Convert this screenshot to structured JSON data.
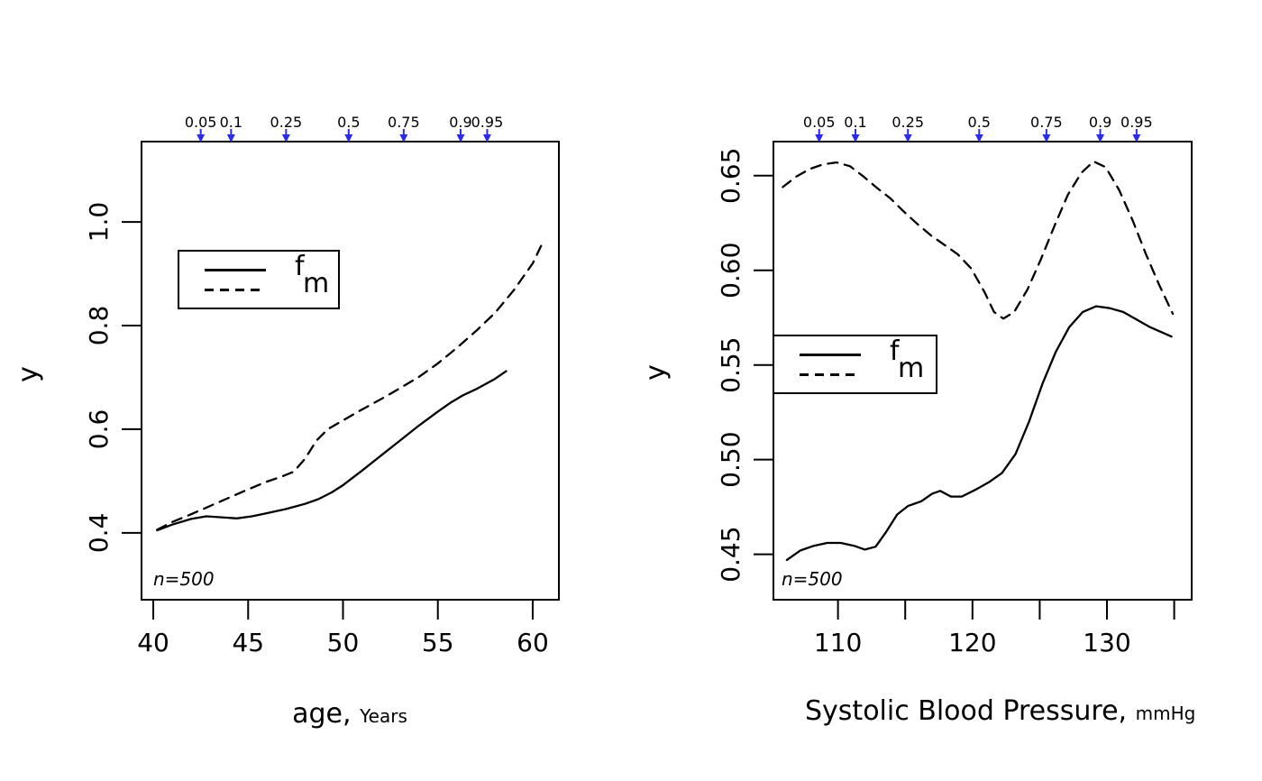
{
  "figure": {
    "background": "#ffffff",
    "text_color": "#000000",
    "line_color": "#000000",
    "quantile_arrow_color": "#2b2bee"
  },
  "chart_data": [
    {
      "id": "age-plot",
      "type": "line",
      "title": "",
      "xlabel_main": "age,",
      "xlabel_unit": "Years",
      "ylabel": "y",
      "sample_size_label": "n=500",
      "grid": false,
      "legend_position": "top-left",
      "xlim": [
        39.38,
        61.38
      ],
      "ylim": [
        0.271,
        1.155
      ],
      "xticks": [
        {
          "v": 40,
          "label": "40"
        },
        {
          "v": 45,
          "label": "45"
        },
        {
          "v": 50,
          "label": "50"
        },
        {
          "v": 55,
          "label": "55"
        },
        {
          "v": 60,
          "label": "60"
        }
      ],
      "yticks": [
        {
          "v": 0.4,
          "label": "0.4"
        },
        {
          "v": 0.6,
          "label": "0.6"
        },
        {
          "v": 0.8,
          "label": "0.8"
        },
        {
          "v": 1.0,
          "label": "1.0"
        }
      ],
      "quantile_markers": {
        "labels": [
          "0.05",
          "0.1",
          "0.25",
          "0.5",
          "0.75",
          "0.9",
          "0.95"
        ],
        "x": [
          42.5,
          44.1,
          47.0,
          50.3,
          53.2,
          56.2,
          57.6
        ]
      },
      "series": [
        {
          "name": "f",
          "line": "solid",
          "points": [
            [
              40.2,
              0.405
            ],
            [
              41.0,
              0.416
            ],
            [
              42.0,
              0.427
            ],
            [
              42.8,
              0.432
            ],
            [
              43.6,
              0.43
            ],
            [
              44.4,
              0.428
            ],
            [
              45.2,
              0.432
            ],
            [
              46.0,
              0.438
            ],
            [
              47.0,
              0.446
            ],
            [
              48.0,
              0.456
            ],
            [
              48.7,
              0.465
            ],
            [
              49.4,
              0.478
            ],
            [
              50.0,
              0.492
            ],
            [
              51.0,
              0.52
            ],
            [
              52.0,
              0.549
            ],
            [
              53.0,
              0.578
            ],
            [
              54.0,
              0.607
            ],
            [
              55.0,
              0.634
            ],
            [
              55.7,
              0.652
            ],
            [
              56.3,
              0.665
            ],
            [
              57.0,
              0.677
            ],
            [
              58.0,
              0.697
            ],
            [
              58.6,
              0.712
            ]
          ]
        },
        {
          "name": "m",
          "line": "dashed",
          "points": [
            [
              40.2,
              0.406
            ],
            [
              41.0,
              0.421
            ],
            [
              42.0,
              0.436
            ],
            [
              43.0,
              0.452
            ],
            [
              44.0,
              0.468
            ],
            [
              45.0,
              0.484
            ],
            [
              46.0,
              0.499
            ],
            [
              46.8,
              0.509
            ],
            [
              47.4,
              0.518
            ],
            [
              48.0,
              0.543
            ],
            [
              48.6,
              0.578
            ],
            [
              49.2,
              0.6
            ],
            [
              50.0,
              0.617
            ],
            [
              51.0,
              0.638
            ],
            [
              52.0,
              0.658
            ],
            [
              53.0,
              0.679
            ],
            [
              54.0,
              0.701
            ],
            [
              55.0,
              0.727
            ],
            [
              56.0,
              0.757
            ],
            [
              57.0,
              0.789
            ],
            [
              58.0,
              0.824
            ],
            [
              59.0,
              0.868
            ],
            [
              60.0,
              0.92
            ],
            [
              60.6,
              0.966
            ]
          ]
        }
      ]
    },
    {
      "id": "sbp-plot",
      "type": "line",
      "title": "",
      "xlabel_main": "Systolic Blood Pressure,",
      "xlabel_unit": "mmHg",
      "ylabel": "y",
      "sample_size_label": "n=500",
      "grid": false,
      "legend_position": "middle-left",
      "xlim": [
        105.2,
        136.3
      ],
      "ylim": [
        0.426,
        0.668
      ],
      "xticks": [
        {
          "v": 110,
          "label": "110"
        },
        {
          "v": 115,
          "label": ""
        },
        {
          "v": 120,
          "label": "120"
        },
        {
          "v": 125,
          "label": ""
        },
        {
          "v": 130,
          "label": "130"
        },
        {
          "v": 135,
          "label": ""
        }
      ],
      "yticks": [
        {
          "v": 0.45,
          "label": "0.45"
        },
        {
          "v": 0.5,
          "label": "0.50"
        },
        {
          "v": 0.55,
          "label": "0.55"
        },
        {
          "v": 0.6,
          "label": "0.60"
        },
        {
          "v": 0.65,
          "label": "0.65"
        }
      ],
      "quantile_markers": {
        "labels": [
          "0.05",
          "0.1",
          "0.25",
          "0.5",
          "0.75",
          "0.9",
          "0.95"
        ],
        "x": [
          108.6,
          111.3,
          115.2,
          120.5,
          125.5,
          129.5,
          132.2
        ]
      },
      "series": [
        {
          "name": "f",
          "line": "solid",
          "points": [
            [
              106.2,
              0.447
            ],
            [
              107.2,
              0.452
            ],
            [
              108.2,
              0.4545
            ],
            [
              109.2,
              0.456
            ],
            [
              110.2,
              0.456
            ],
            [
              111.2,
              0.4545
            ],
            [
              112.0,
              0.4525
            ],
            [
              112.8,
              0.454
            ],
            [
              113.6,
              0.462
            ],
            [
              114.4,
              0.471
            ],
            [
              115.2,
              0.4755
            ],
            [
              116.2,
              0.478
            ],
            [
              117.0,
              0.482
            ],
            [
              117.6,
              0.4835
            ],
            [
              118.4,
              0.4805
            ],
            [
              119.2,
              0.4805
            ],
            [
              120.2,
              0.484
            ],
            [
              121.2,
              0.488
            ],
            [
              122.2,
              0.493
            ],
            [
              123.2,
              0.503
            ],
            [
              124.2,
              0.52
            ],
            [
              125.2,
              0.54
            ],
            [
              126.2,
              0.557
            ],
            [
              127.2,
              0.57
            ],
            [
              128.2,
              0.578
            ],
            [
              129.2,
              0.581
            ],
            [
              130.2,
              0.58
            ],
            [
              131.2,
              0.578
            ],
            [
              132.2,
              0.574
            ],
            [
              133.2,
              0.57
            ],
            [
              134.8,
              0.565
            ]
          ]
        },
        {
          "name": "m",
          "line": "dashed",
          "points": [
            [
              105.9,
              0.644
            ],
            [
              106.9,
              0.6495
            ],
            [
              107.9,
              0.6535
            ],
            [
              108.9,
              0.656
            ],
            [
              109.9,
              0.657
            ],
            [
              110.9,
              0.655
            ],
            [
              111.9,
              0.6495
            ],
            [
              112.9,
              0.6435
            ],
            [
              113.9,
              0.638
            ],
            [
              114.9,
              0.631
            ],
            [
              115.9,
              0.6245
            ],
            [
              116.9,
              0.6185
            ],
            [
              117.9,
              0.6135
            ],
            [
              118.9,
              0.6085
            ],
            [
              119.9,
              0.601
            ],
            [
              120.9,
              0.5885
            ],
            [
              121.6,
              0.578
            ],
            [
              122.3,
              0.5745
            ],
            [
              123.1,
              0.578
            ],
            [
              124.1,
              0.59
            ],
            [
              125.1,
              0.606
            ],
            [
              126.1,
              0.6235
            ],
            [
              127.1,
              0.64
            ],
            [
              128.1,
              0.6515
            ],
            [
              129.0,
              0.6575
            ],
            [
              129.9,
              0.6545
            ],
            [
              130.9,
              0.6425
            ],
            [
              131.9,
              0.6265
            ],
            [
              132.9,
              0.6085
            ],
            [
              133.9,
              0.592
            ],
            [
              134.9,
              0.577
            ]
          ]
        }
      ]
    }
  ]
}
